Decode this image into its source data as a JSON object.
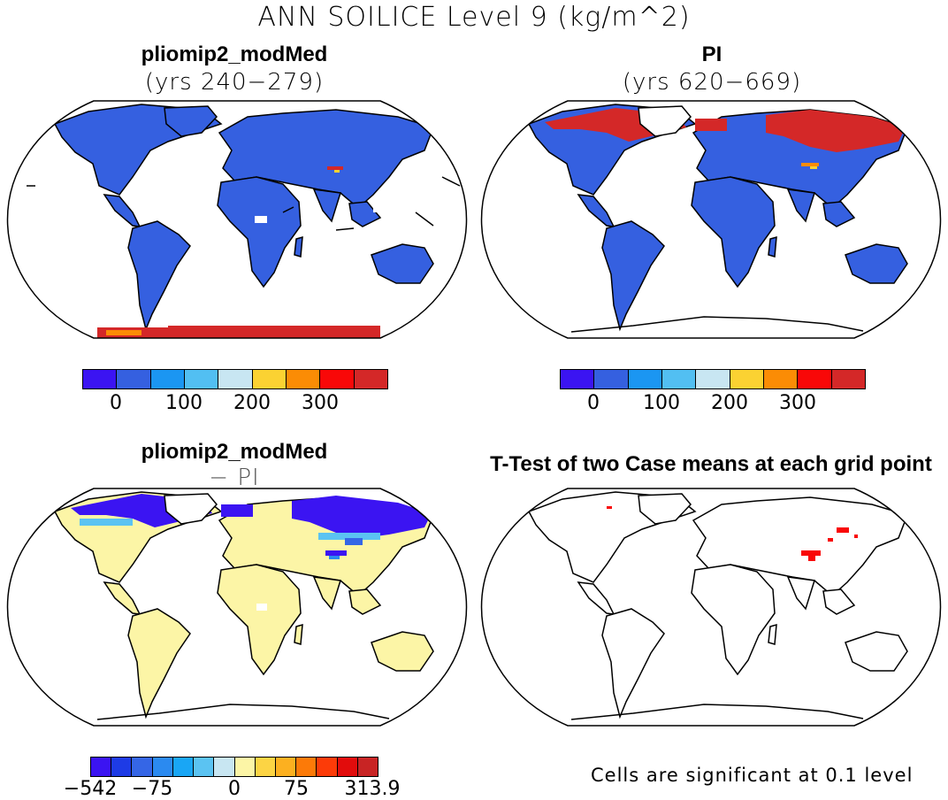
{
  "figure_title": "ANN SOILICE Level 9 (kg/m^2)",
  "panels": {
    "top_left": {
      "title": "pliomip2_modMed",
      "subtitle": "(yrs 240−279)"
    },
    "top_right": {
      "title": "PI",
      "subtitle": "(yrs 620−669)"
    },
    "bottom_left": {
      "title": "pliomip2_modMed",
      "subtitle": "− PI"
    },
    "bottom_right": {
      "title": "T-Test of two Case means at each grid point"
    }
  },
  "colorbar_top": {
    "colors": [
      "#3b14f2",
      "#3560e0",
      "#1b96f2",
      "#52bff2",
      "#c8e6f2",
      "#fbd232",
      "#fb8c05",
      "#f90808",
      "#d42828"
    ],
    "tick_labels": [
      "0",
      "100",
      "200",
      "300"
    ]
  },
  "colorbar_bottom": {
    "colors": [
      "#3b14f2",
      "#1e3be6",
      "#3566e6",
      "#2b8af0",
      "#19a6f5",
      "#5bc3f2",
      "#c8e6f2",
      "#fcf5a6",
      "#fcd444",
      "#fcb020",
      "#fc7a08",
      "#fc3b08",
      "#e20c0c",
      "#c82424"
    ],
    "tick_labels": [
      "−542",
      "−75",
      "0",
      "75",
      "313.9"
    ]
  },
  "significance_note": "Cells are significant at 0.1 level",
  "colors": {
    "land_blue": "#3560e0",
    "land_yellow": "#fcf5a6",
    "ice_red": "#d42828",
    "sig_red": "#f90808"
  }
}
